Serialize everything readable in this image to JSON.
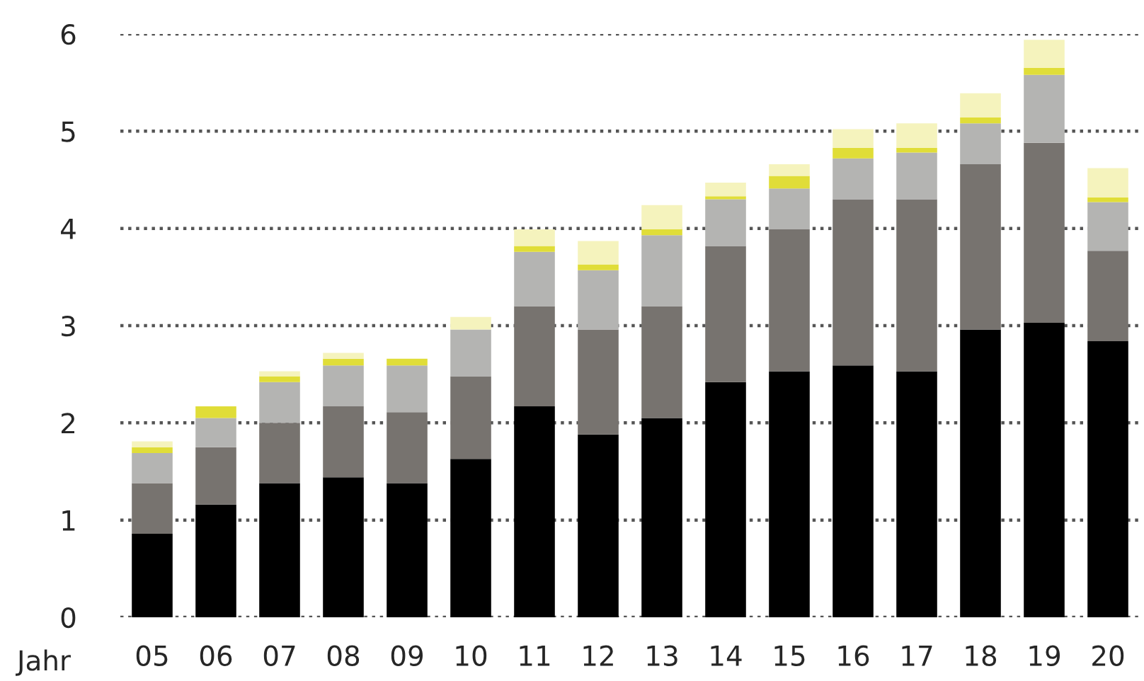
{
  "chart_data": {
    "type": "bar",
    "stacked": true,
    "xlabel": "Jahr",
    "categories": [
      "05",
      "06",
      "07",
      "08",
      "09",
      "10",
      "11",
      "12",
      "13",
      "14",
      "15",
      "16",
      "17",
      "18",
      "19",
      "20"
    ],
    "series": [
      {
        "color": "#000000",
        "values": [
          0.86,
          1.16,
          1.38,
          1.44,
          1.38,
          1.63,
          2.17,
          1.88,
          2.05,
          2.42,
          2.53,
          2.59,
          2.53,
          2.96,
          3.03,
          2.84
        ]
      },
      {
        "color": "#77736f",
        "values": [
          0.52,
          0.59,
          0.62,
          0.73,
          0.73,
          0.85,
          1.03,
          1.08,
          1.15,
          1.4,
          1.46,
          1.71,
          1.77,
          1.7,
          1.85,
          0.93
        ]
      },
      {
        "color": "#b4b4b2",
        "values": [
          0.31,
          0.3,
          0.42,
          0.42,
          0.48,
          0.48,
          0.56,
          0.61,
          0.73,
          0.48,
          0.42,
          0.42,
          0.48,
          0.42,
          0.7,
          0.5
        ]
      },
      {
        "color": "#e0dd38",
        "values": [
          0.06,
          0.12,
          0.06,
          0.07,
          0.07,
          0,
          0.06,
          0.06,
          0.06,
          0.03,
          0.13,
          0.11,
          0.05,
          0.06,
          0.07,
          0.05
        ]
      },
      {
        "color": "#f5f3bd",
        "values": [
          0.06,
          0,
          0.05,
          0.06,
          0,
          0.13,
          0.17,
          0.24,
          0.25,
          0.14,
          0.12,
          0.19,
          0.25,
          0.25,
          0.29,
          0.3
        ]
      }
    ],
    "ylim": [
      0,
      6
    ],
    "yticks": [
      0,
      1,
      2,
      3,
      4,
      5,
      6
    ],
    "grid": "y"
  }
}
